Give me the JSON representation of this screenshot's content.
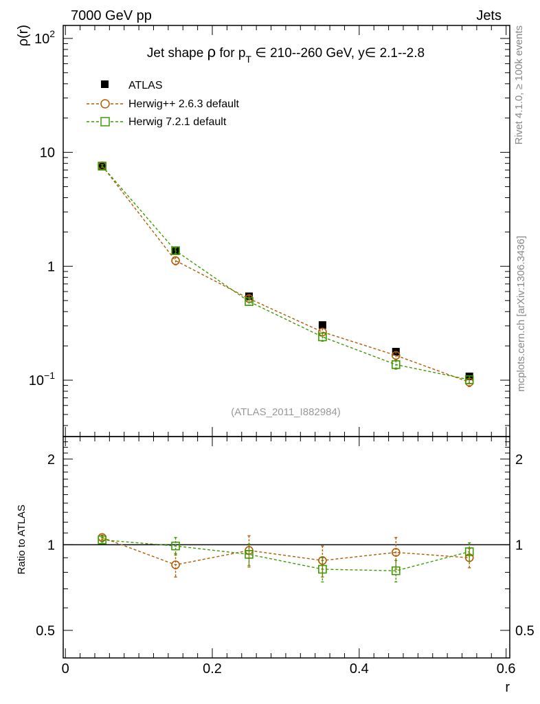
{
  "header": {
    "left": "7000 GeV pp",
    "right": "Jets"
  },
  "side_labels": {
    "rivet": "Rivet 4.1.0, ≥ 100k events",
    "mcplots": "mcplots.cern.ch [arXiv:1306.3436]"
  },
  "chart_data": {
    "type": "scatter",
    "title": {
      "prefix": "Jet shape ",
      "rho": "ρ",
      "mid": " for p",
      "sub": "T",
      "suffix": " ∈ 210--260 GeV, y∈ 2.1--2.8"
    },
    "analysis_id": "(ATLAS_2011_I882984)",
    "xlabel": "r",
    "ylabel": "ρ(r)",
    "ratio_ylabel": "Ratio to ATLAS",
    "x": [
      0.05,
      0.15,
      0.25,
      0.35,
      0.45,
      0.55
    ],
    "xlim": [
      -0.003,
      0.605
    ],
    "x_ticks": [
      {
        "value": 0,
        "label": "0"
      },
      {
        "value": 0.2,
        "label": "0.2"
      },
      {
        "value": 0.4,
        "label": "0.4"
      },
      {
        "value": 0.6,
        "label": "0.6"
      }
    ],
    "main": {
      "yscale": "log",
      "ylim": [
        0.032,
        130
      ],
      "y_ticks": [
        {
          "value": 100,
          "base": "10",
          "exp": "2"
        },
        {
          "value": 10,
          "base": "10",
          "exp": ""
        },
        {
          "value": 1,
          "base": "1",
          "exp": ""
        },
        {
          "value": 0.1,
          "base": "10",
          "exp": "−1"
        }
      ],
      "series": [
        {
          "name": "ATLAS",
          "marker": "filled-square",
          "color": "#000000",
          "line": false,
          "values": [
            7.5,
            1.38,
            0.545,
            0.305,
            0.178,
            0.108
          ]
        },
        {
          "name": "Herwig++ 2.6.3 default",
          "marker": "open-circle",
          "color": "#b35900",
          "line": true,
          "values": [
            7.62,
            1.12,
            0.52,
            0.265,
            0.165,
            0.096
          ],
          "errors": [
            0.2,
            0.09,
            0.035,
            0.02,
            0.013,
            0.008
          ]
        },
        {
          "name": "Herwig 7.2.1 default",
          "marker": "open-square",
          "color": "#3d9900",
          "line": true,
          "values": [
            7.58,
            1.37,
            0.49,
            0.24,
            0.137,
            0.101
          ],
          "errors": [
            0.2,
            0.08,
            0.035,
            0.02,
            0.012,
            0.008
          ]
        }
      ]
    },
    "ratio": {
      "yscale": "log",
      "ylim": [
        0.4,
        2.4
      ],
      "reference": 1,
      "y_ticks": [
        {
          "value": 2,
          "label": "2"
        },
        {
          "value": 1,
          "label": "1"
        },
        {
          "value": 0.5,
          "label": "0.5"
        }
      ],
      "series": [
        {
          "name": "Herwig++ 2.6.3 default",
          "marker": "open-circle",
          "color": "#b35900",
          "values": [
            1.06,
            0.85,
            0.955,
            0.88,
            0.94,
            0.9
          ],
          "errors": [
            0.02,
            0.08,
            0.12,
            0.11,
            0.12,
            0.07
          ]
        },
        {
          "name": "Herwig 7.2.1 default",
          "marker": "open-square",
          "color": "#3d9900",
          "values": [
            1.04,
            0.99,
            0.925,
            0.82,
            0.81,
            0.945
          ],
          "errors": [
            0.02,
            0.07,
            0.08,
            0.08,
            0.07,
            0.07
          ]
        }
      ]
    }
  }
}
